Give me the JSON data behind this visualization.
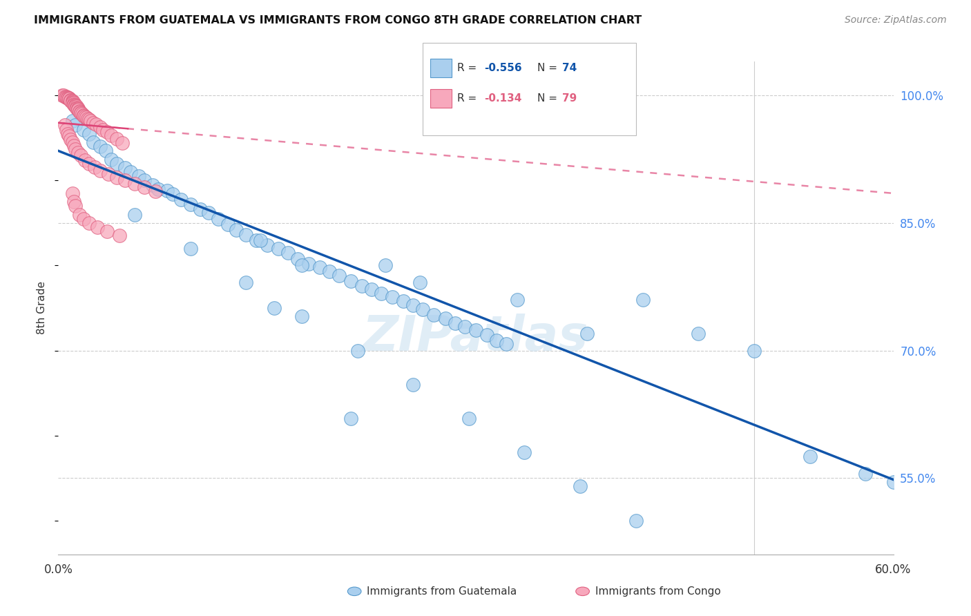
{
  "title": "IMMIGRANTS FROM GUATEMALA VS IMMIGRANTS FROM CONGO 8TH GRADE CORRELATION CHART",
  "source": "Source: ZipAtlas.com",
  "ylabel": "8th Grade",
  "xlim": [
    0.0,
    0.6
  ],
  "ylim": [
    0.46,
    1.04
  ],
  "xticks": [
    0.0,
    0.1,
    0.2,
    0.3,
    0.4,
    0.5,
    0.6
  ],
  "xticklabels": [
    "0.0%",
    "",
    "",
    "",
    "",
    "",
    "60.0%"
  ],
  "yticks_right": [
    0.55,
    0.7,
    0.85,
    1.0
  ],
  "ytick_labels_right": [
    "55.0%",
    "70.0%",
    "85.0%",
    "100.0%"
  ],
  "legend_label_blue": "Immigrants from Guatemala",
  "legend_label_pink": "Immigrants from Congo",
  "blue_color": "#aacfee",
  "pink_color": "#f7a8bc",
  "blue_edge_color": "#5599cc",
  "pink_edge_color": "#e06080",
  "blue_line_color": "#1155aa",
  "pink_line_color": "#dd4477",
  "watermark": "ZIPatlas",
  "blue_line_x0": 0.0,
  "blue_line_y0": 0.935,
  "blue_line_x1": 0.6,
  "blue_line_y1": 0.548,
  "pink_line_x0": 0.0,
  "pink_line_y0": 0.968,
  "pink_line_x1": 0.6,
  "pink_line_y1": 0.885,
  "blue_scatter_x": [
    0.01,
    0.012,
    0.018,
    0.022,
    0.025,
    0.03,
    0.034,
    0.038,
    0.042,
    0.048,
    0.052,
    0.058,
    0.062,
    0.068,
    0.072,
    0.078,
    0.082,
    0.088,
    0.095,
    0.102,
    0.108,
    0.115,
    0.122,
    0.128,
    0.135,
    0.142,
    0.15,
    0.158,
    0.165,
    0.172,
    0.18,
    0.188,
    0.195,
    0.202,
    0.21,
    0.218,
    0.225,
    0.232,
    0.24,
    0.248,
    0.255,
    0.262,
    0.27,
    0.278,
    0.285,
    0.292,
    0.3,
    0.308,
    0.315,
    0.322,
    0.055,
    0.095,
    0.135,
    0.175,
    0.215,
    0.255,
    0.295,
    0.335,
    0.375,
    0.415,
    0.33,
    0.38,
    0.42,
    0.46,
    0.5,
    0.54,
    0.58,
    0.6,
    0.21,
    0.175,
    0.155,
    0.235,
    0.26,
    0.145
  ],
  "blue_scatter_y": [
    0.97,
    0.965,
    0.96,
    0.955,
    0.945,
    0.94,
    0.935,
    0.925,
    0.92,
    0.915,
    0.91,
    0.905,
    0.9,
    0.895,
    0.89,
    0.888,
    0.884,
    0.878,
    0.872,
    0.866,
    0.862,
    0.855,
    0.848,
    0.842,
    0.836,
    0.83,
    0.824,
    0.82,
    0.815,
    0.808,
    0.802,
    0.798,
    0.793,
    0.788,
    0.782,
    0.776,
    0.772,
    0.767,
    0.763,
    0.758,
    0.753,
    0.748,
    0.742,
    0.738,
    0.732,
    0.728,
    0.724,
    0.718,
    0.712,
    0.708,
    0.86,
    0.82,
    0.78,
    0.74,
    0.7,
    0.66,
    0.62,
    0.58,
    0.54,
    0.5,
    0.76,
    0.72,
    0.76,
    0.72,
    0.7,
    0.575,
    0.555,
    0.545,
    0.62,
    0.8,
    0.75,
    0.8,
    0.78,
    0.83
  ],
  "pink_scatter_x": [
    0.003,
    0.004,
    0.005,
    0.006,
    0.006,
    0.007,
    0.007,
    0.007,
    0.008,
    0.008,
    0.008,
    0.009,
    0.009,
    0.009,
    0.01,
    0.01,
    0.01,
    0.01,
    0.011,
    0.011,
    0.011,
    0.012,
    0.012,
    0.012,
    0.013,
    0.013,
    0.013,
    0.014,
    0.014,
    0.014,
    0.015,
    0.015,
    0.016,
    0.016,
    0.017,
    0.018,
    0.018,
    0.019,
    0.02,
    0.021,
    0.022,
    0.023,
    0.025,
    0.027,
    0.03,
    0.032,
    0.035,
    0.038,
    0.042,
    0.046,
    0.005,
    0.006,
    0.007,
    0.008,
    0.009,
    0.01,
    0.011,
    0.012,
    0.014,
    0.016,
    0.019,
    0.022,
    0.026,
    0.03,
    0.036,
    0.042,
    0.048,
    0.055,
    0.062,
    0.07,
    0.01,
    0.011,
    0.012,
    0.015,
    0.018,
    0.022,
    0.028,
    0.035,
    0.044
  ],
  "pink_scatter_y": [
    1.0,
    1.0,
    0.999,
    0.999,
    0.998,
    0.998,
    0.997,
    0.997,
    0.997,
    0.996,
    0.996,
    0.995,
    0.995,
    0.994,
    0.994,
    0.993,
    0.992,
    0.991,
    0.991,
    0.99,
    0.989,
    0.989,
    0.988,
    0.987,
    0.987,
    0.986,
    0.985,
    0.985,
    0.984,
    0.983,
    0.982,
    0.981,
    0.98,
    0.979,
    0.978,
    0.977,
    0.976,
    0.975,
    0.974,
    0.973,
    0.972,
    0.97,
    0.968,
    0.966,
    0.963,
    0.96,
    0.957,
    0.953,
    0.949,
    0.944,
    0.965,
    0.96,
    0.955,
    0.952,
    0.948,
    0.945,
    0.941,
    0.937,
    0.933,
    0.93,
    0.924,
    0.92,
    0.916,
    0.912,
    0.908,
    0.904,
    0.9,
    0.896,
    0.892,
    0.887,
    0.885,
    0.875,
    0.87,
    0.86,
    0.855,
    0.85,
    0.845,
    0.84,
    0.835
  ]
}
